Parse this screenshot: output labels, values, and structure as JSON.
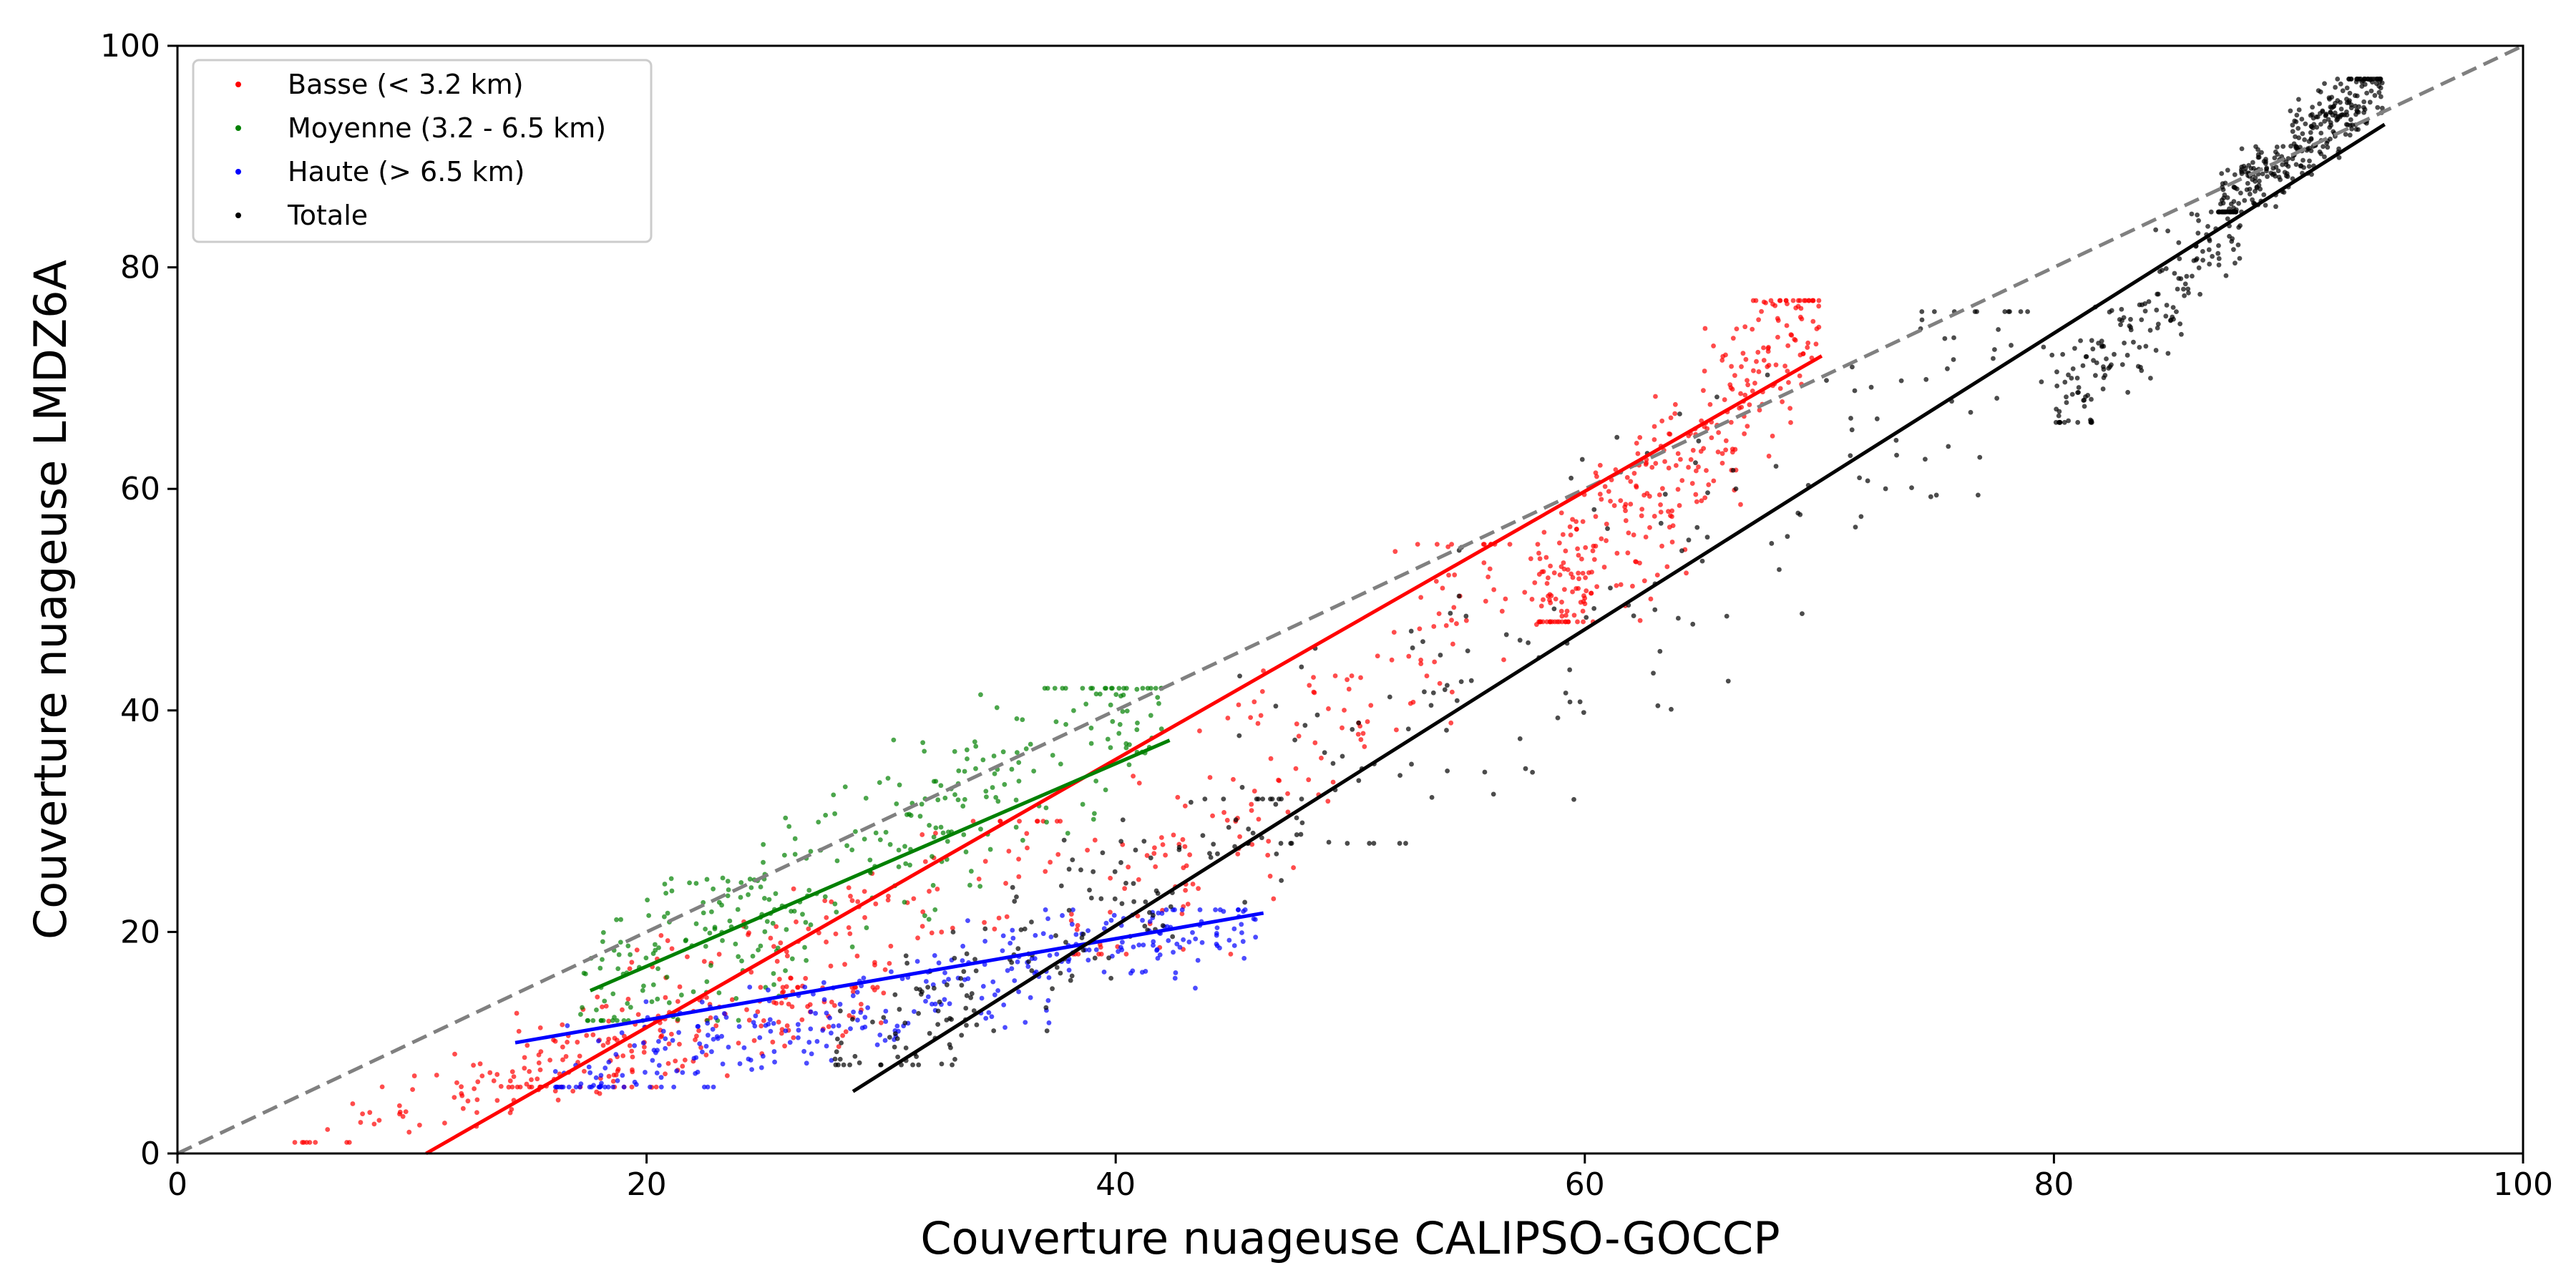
{
  "chart_data": {
    "type": "scatter",
    "xlabel": "Couverture nuageuse CALIPSO-GOCCP",
    "ylabel": "Couverture nuageuse LMDZ6A",
    "xlim": [
      0,
      100
    ],
    "ylim": [
      0,
      100
    ],
    "x_ticks": [
      0,
      20,
      40,
      60,
      80,
      100
    ],
    "y_ticks": [
      0,
      20,
      40,
      60,
      80,
      100
    ],
    "grid": false,
    "legend_position": "top-left",
    "reference_line": {
      "style": "dashed",
      "color": "#808080",
      "points": [
        [
          0,
          0
        ],
        [
          100,
          100
        ]
      ]
    },
    "series": [
      {
        "name": "Basse (< 3.2 km)",
        "color": "#ff0000",
        "clusters": [
          {
            "x_range": [
              5,
              30
            ],
            "y_range": [
              1,
              15
            ],
            "density": "medium"
          },
          {
            "x_range": [
              14,
              38
            ],
            "y_range": [
              6,
              30
            ],
            "density": "medium"
          },
          {
            "x_range": [
              38,
              58
            ],
            "y_range": [
              18,
              55
            ],
            "density": "medium"
          },
          {
            "x_range": [
              58,
              70
            ],
            "y_range": [
              48,
              77
            ],
            "density": "high"
          }
        ],
        "regression_line": [
          [
            10.6,
            0
          ],
          [
            70.1,
            72.0
          ]
        ]
      },
      {
        "name": "Moyenne (3.2 - 6.5 km)",
        "color": "#008000",
        "clusters": [
          {
            "x_range": [
              17,
              42
            ],
            "y_range": [
              12,
              42
            ],
            "density": "high"
          }
        ],
        "regression_line": [
          [
            17.6,
            14.7
          ],
          [
            42.3,
            37.3
          ]
        ]
      },
      {
        "name": "Haute (> 6.5 km)",
        "color": "#0000ff",
        "clusters": [
          {
            "x_range": [
              16,
              46
            ],
            "y_range": [
              6,
              22
            ],
            "density": "high"
          }
        ],
        "regression_line": [
          [
            14.4,
            10.0
          ],
          [
            46.3,
            21.7
          ]
        ]
      },
      {
        "name": "Totale",
        "color": "#000000",
        "clusters": [
          {
            "x_range": [
              28,
              48
            ],
            "y_range": [
              8,
              32
            ],
            "density": "medium"
          },
          {
            "x_range": [
              45,
              80
            ],
            "y_range": [
              28,
              76
            ],
            "density": "medium"
          },
          {
            "x_range": [
              80,
              88
            ],
            "y_range": [
              66,
              85
            ],
            "density": "medium"
          },
          {
            "x_range": [
              87,
              94
            ],
            "y_range": [
              85,
              97
            ],
            "density": "high"
          }
        ],
        "regression_line": [
          [
            28.8,
            5.6
          ],
          [
            94.1,
            92.9
          ]
        ]
      }
    ]
  }
}
